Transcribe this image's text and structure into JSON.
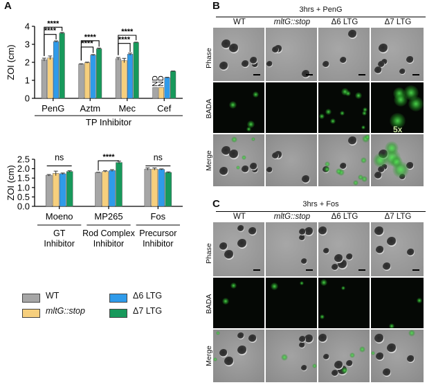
{
  "panels": {
    "A": "A",
    "B": "B",
    "C": "C"
  },
  "colors": {
    "WT": "#a6a6a6",
    "mltG": "#f6cf7d",
    "d6": "#2f9bea",
    "d7": "#17995b"
  },
  "chart_data": [
    {
      "type": "bar",
      "title": "",
      "ylabel": "ZOI (cm)",
      "xlabel": "TP Inhibitor",
      "ylim": [
        0,
        4
      ],
      "yticks": [
        "0",
        "1",
        "2",
        "3",
        "4"
      ],
      "categories": [
        "PenG",
        "Aztm",
        "Mec",
        "Cef"
      ],
      "series": [
        {
          "name": "WT",
          "values": [
            2.15,
            1.9,
            2.2,
            0.6
          ],
          "err": [
            0.08,
            0.02,
            0.07,
            0
          ]
        },
        {
          "name": "mltG::stop",
          "values": [
            2.25,
            1.98,
            2.1,
            0.6
          ],
          "err": [
            0.1,
            0.03,
            0.12,
            0
          ]
        },
        {
          "name": "Δ6 LTG",
          "values": [
            3.15,
            2.4,
            2.45,
            1.15
          ],
          "err": [
            0.04,
            0.03,
            0.06,
            0.02
          ]
        },
        {
          "name": "Δ7 LTG",
          "values": [
            3.62,
            2.75,
            3.1,
            1.5
          ],
          "err": [
            0.04,
            0.04,
            0.02,
            0.02
          ]
        }
      ],
      "nd_labels": [
        "ND",
        "ND"
      ],
      "significance": [
        "****",
        "****",
        "****",
        "****",
        "****",
        "****"
      ]
    },
    {
      "type": "bar",
      "title": "",
      "ylabel": "ZOI (cm)",
      "ylim": [
        0,
        2.5
      ],
      "yticks": [
        "0.0",
        "0.5",
        "1.0",
        "1.5",
        "2.0",
        "2.5"
      ],
      "categories": [
        "Moeno",
        "MP265",
        "Fos"
      ],
      "group_labels": [
        [
          "GT",
          "Inhibitor"
        ],
        [
          "Rod Complex",
          "Inhibitor"
        ],
        [
          "Precursor",
          "Inhibitor"
        ]
      ],
      "series": [
        {
          "name": "WT",
          "values": [
            1.65,
            1.8,
            1.98
          ],
          "err": [
            0.04,
            0.01,
            0.06
          ]
        },
        {
          "name": "mltG::stop",
          "values": [
            1.75,
            1.85,
            1.98
          ],
          "err": [
            0.12,
            0.04,
            0.06
          ]
        },
        {
          "name": "Δ6 LTG",
          "values": [
            1.73,
            1.9,
            1.96
          ],
          "err": [
            0.04,
            0.05,
            0.03
          ]
        },
        {
          "name": "Δ7 LTG",
          "values": [
            1.85,
            2.33,
            1.8
          ],
          "err": [
            0.04,
            0.07,
            0.03
          ]
        }
      ],
      "significance": [
        "ns",
        "****",
        "ns"
      ]
    }
  ],
  "legend": [
    {
      "label": "WT",
      "italic": false
    },
    {
      "label": "Δ6 LTG",
      "italic": false
    },
    {
      "label": "mltG::stop",
      "italic": true
    },
    {
      "label": "Δ7 LTG",
      "italic": false
    }
  ],
  "panelB": {
    "title": "3hrs + PenG",
    "columns": [
      "WT",
      "mltG::stop",
      "Δ6 LTG",
      "Δ7 LTG"
    ],
    "rows": [
      "Phase",
      "BADA",
      "Merge"
    ],
    "inset_label": "5x"
  },
  "panelC": {
    "title": "3hrs + Fos",
    "columns": [
      "WT",
      "mltG::stop",
      "Δ6 LTG",
      "Δ7 LTG"
    ],
    "rows": [
      "Phase",
      "BADA",
      "Merge"
    ]
  }
}
